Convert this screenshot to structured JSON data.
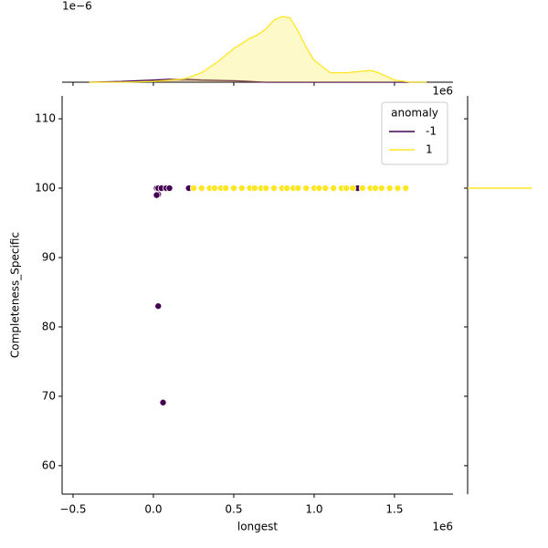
{
  "chart_data": {
    "type": "scatter",
    "xlabel": "longest",
    "ylabel": "Completeness_Specific",
    "x_offset": "1e6",
    "right_marginal_offset": "1e6",
    "top_marginal_offset": "1e−6",
    "xlim": [
      -0.568,
      1.864
    ],
    "ylim": [
      55.9,
      113.3
    ],
    "xticks": [
      {
        "value": -0.5,
        "label": "−0.5"
      },
      {
        "value": 0,
        "label": "0.0"
      },
      {
        "value": 0.5,
        "label": "0.5"
      },
      {
        "value": 1,
        "label": "1.0"
      },
      {
        "value": 1.5,
        "label": "1.5"
      }
    ],
    "yticks": [
      60,
      70,
      80,
      90,
      100,
      110
    ],
    "legend_title": "anomaly",
    "legend": "upper right",
    "series": [
      {
        "name": "-1",
        "color": "#440154",
        "x": [
          0.02,
          0.03,
          0.05,
          0.08,
          0.1,
          0.03,
          0.02,
          0.03,
          0.06,
          0.22,
          1.27
        ],
        "values": [
          100,
          100,
          100,
          100,
          100,
          99.1,
          99.0,
          83,
          69.1,
          100,
          100
        ]
      },
      {
        "name": "1",
        "color": "#fde725",
        "x": [
          0.25,
          0.3,
          0.35,
          0.38,
          0.42,
          0.45,
          0.5,
          0.55,
          0.6,
          0.63,
          0.67,
          0.7,
          0.75,
          0.8,
          0.83,
          0.87,
          0.9,
          0.95,
          1.0,
          1.03,
          1.07,
          1.12,
          1.17,
          1.2,
          1.24,
          1.3,
          1.35,
          1.38,
          1.42,
          1.47,
          1.52,
          1.57
        ],
        "values": [
          100,
          100,
          100,
          100,
          100,
          100,
          100,
          100,
          100,
          100,
          100,
          100,
          100,
          100,
          100,
          100,
          100,
          100,
          100,
          100,
          100,
          100,
          100,
          100,
          100,
          100,
          100,
          100,
          100,
          100,
          100,
          100
        ]
      }
    ],
    "top_kde": {
      "ylim": [
        0,
        1
      ],
      "x": [
        -0.4,
        -0.2,
        0,
        0.1,
        0.2,
        0.3,
        0.4,
        0.5,
        0.6,
        0.65,
        0.7,
        0.75,
        0.8,
        0.85,
        0.9,
        0.95,
        1.0,
        1.1,
        1.2,
        1.3,
        1.35,
        1.4,
        1.5,
        1.6,
        1.7
      ],
      "series": [
        {
          "values": [
            0,
            0.01,
            0.03,
            0.04,
            0.04,
            0.03,
            0.025,
            0.02,
            0.01,
            0.005,
            0,
            0,
            0,
            0,
            0,
            0,
            0,
            0,
            0,
            0,
            0,
            0,
            0,
            0,
            0
          ]
        },
        {
          "values": [
            0,
            0,
            0.01,
            0.03,
            0.05,
            0.13,
            0.28,
            0.46,
            0.6,
            0.65,
            0.73,
            0.85,
            0.9,
            0.88,
            0.7,
            0.48,
            0.3,
            0.13,
            0.13,
            0.15,
            0.16,
            0.13,
            0.03,
            0,
            0
          ]
        }
      ]
    },
    "right_kde": {
      "xlim": [
        0,
        1
      ],
      "y": [
        100,
        100
      ],
      "series": [
        {
          "values": [
            0,
            0.9
          ]
        }
      ]
    }
  }
}
